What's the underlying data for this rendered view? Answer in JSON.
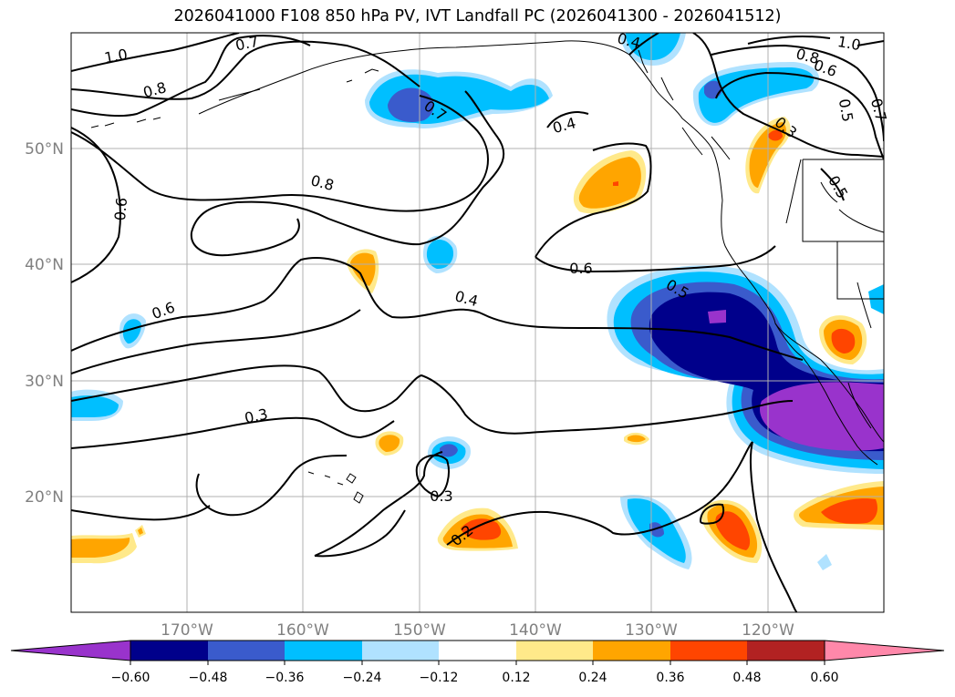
{
  "title": "2026041000 F108 850 hPa PV, IVT Landfall PC (2026041300 - 2026041512)",
  "map": {
    "lat_labels": [
      "50°N",
      "40°N",
      "30°N",
      "20°N"
    ],
    "lon_labels": [
      "170°W",
      "160°W",
      "150°W",
      "140°W",
      "130°W",
      "120°W"
    ],
    "contour_labels": [
      "1.0",
      "0.7",
      "0.8",
      "0.6",
      "0.7",
      "0.8",
      "0.4",
      "0.4",
      "0.6",
      "0.5",
      "0.6",
      "0.4",
      "0.3",
      "0.3",
      "0.2",
      "1.0",
      "0.8",
      "0.6",
      "0.5",
      "0.7",
      "0.5",
      "0.3"
    ]
  },
  "colorbar": {
    "ticks": [
      "−0.60",
      "−0.48",
      "−0.36",
      "−0.24",
      "−0.12",
      "0.12",
      "0.24",
      "0.36",
      "0.48",
      "0.60"
    ],
    "colors": [
      "#9933cc",
      "#00008b",
      "#3a5bcc",
      "#00bfff",
      "#b0e2ff",
      "#ffffff",
      "#ffe98a",
      "#ffa500",
      "#ff4500",
      "#b22222",
      "#ff88aa"
    ]
  }
}
